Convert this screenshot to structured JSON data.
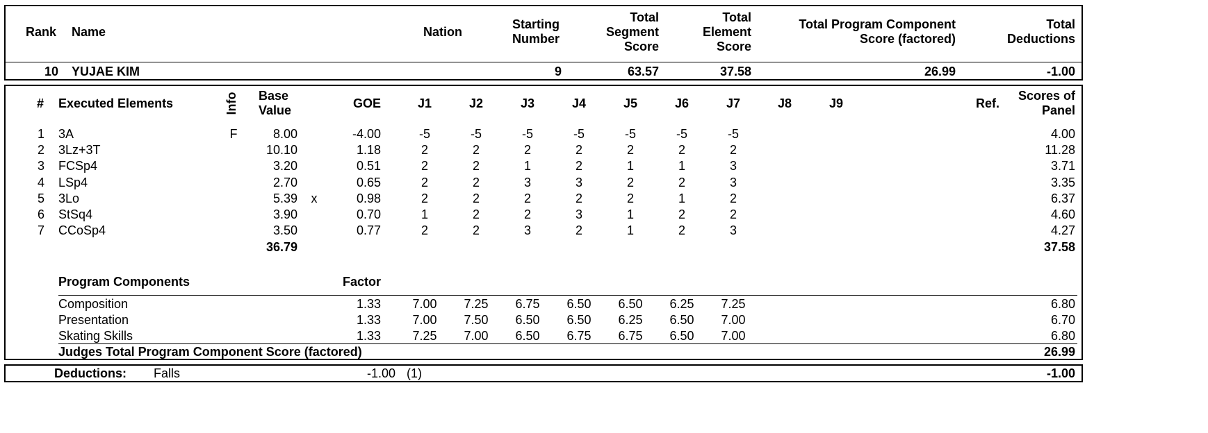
{
  "header": {
    "rank_label": "Rank",
    "name_label": "Name",
    "nation_label": "Nation",
    "starting_number_label": [
      "Starting",
      "Number"
    ],
    "tss_label": [
      "Total",
      "Segment",
      "Score"
    ],
    "tes_label": [
      "Total",
      "Element",
      "Score"
    ],
    "pcs_label": [
      "Total Program Component",
      "Score (factored)"
    ],
    "ded_label": [
      "Total",
      "Deductions"
    ]
  },
  "skater": {
    "rank": "10",
    "name": "YUJAE KIM",
    "starting_number": "9",
    "total_segment_score": "63.57",
    "total_element_score": "37.58",
    "total_pcs": "26.99",
    "total_deductions": "-1.00"
  },
  "elements_header": {
    "num": "#",
    "executed": "Executed Elements",
    "info": "Info",
    "base_value": [
      "Base",
      "Value"
    ],
    "goe": "GOE",
    "judges": [
      "J1",
      "J2",
      "J3",
      "J4",
      "J5",
      "J6",
      "J7",
      "J8",
      "J9"
    ],
    "ref": "Ref.",
    "panel": [
      "Scores of",
      "Panel"
    ]
  },
  "elements": [
    {
      "num": "1",
      "name": "3A",
      "info": "F",
      "base": "8.00",
      "bonus": "",
      "goe": "-4.00",
      "j": [
        "-5",
        "-5",
        "-5",
        "-5",
        "-5",
        "-5",
        "-5"
      ],
      "score": "4.00"
    },
    {
      "num": "2",
      "name": "3Lz+3T",
      "info": "",
      "base": "10.10",
      "bonus": "",
      "goe": "1.18",
      "j": [
        "2",
        "2",
        "2",
        "2",
        "2",
        "2",
        "2"
      ],
      "score": "11.28"
    },
    {
      "num": "3",
      "name": "FCSp4",
      "info": "",
      "base": "3.20",
      "bonus": "",
      "goe": "0.51",
      "j": [
        "2",
        "2",
        "1",
        "2",
        "1",
        "1",
        "3"
      ],
      "score": "3.71"
    },
    {
      "num": "4",
      "name": "LSp4",
      "info": "",
      "base": "2.70",
      "bonus": "",
      "goe": "0.65",
      "j": [
        "2",
        "2",
        "3",
        "3",
        "2",
        "2",
        "3"
      ],
      "score": "3.35"
    },
    {
      "num": "5",
      "name": "3Lo",
      "info": "",
      "base": "5.39",
      "bonus": "x",
      "goe": "0.98",
      "j": [
        "2",
        "2",
        "2",
        "2",
        "2",
        "1",
        "2"
      ],
      "score": "6.37"
    },
    {
      "num": "6",
      "name": "StSq4",
      "info": "",
      "base": "3.90",
      "bonus": "",
      "goe": "0.70",
      "j": [
        "1",
        "2",
        "2",
        "3",
        "1",
        "2",
        "2"
      ],
      "score": "4.60"
    },
    {
      "num": "7",
      "name": "CCoSp4",
      "info": "",
      "base": "3.50",
      "bonus": "",
      "goe": "0.77",
      "j": [
        "2",
        "2",
        "3",
        "2",
        "1",
        "2",
        "3"
      ],
      "score": "4.27"
    }
  ],
  "elements_total": {
    "base": "36.79",
    "score": "37.58"
  },
  "components_header": {
    "label": "Program Components",
    "factor": "Factor"
  },
  "components": [
    {
      "name": "Composition",
      "factor": "1.33",
      "j": [
        "7.00",
        "7.25",
        "6.75",
        "6.50",
        "6.50",
        "6.25",
        "7.25"
      ],
      "score": "6.80"
    },
    {
      "name": "Presentation",
      "factor": "1.33",
      "j": [
        "7.00",
        "7.50",
        "6.50",
        "6.50",
        "6.25",
        "6.50",
        "7.00"
      ],
      "score": "6.70"
    },
    {
      "name": "Skating Skills",
      "factor": "1.33",
      "j": [
        "7.25",
        "7.00",
        "6.50",
        "6.75",
        "6.75",
        "6.50",
        "7.00"
      ],
      "score": "6.80"
    }
  ],
  "components_total": {
    "label": "Judges Total Program Component Score (factored)",
    "score": "26.99"
  },
  "deductions": {
    "label": "Deductions:",
    "type": "Falls",
    "value": "-1.00",
    "count": "(1)",
    "total": "-1.00"
  }
}
